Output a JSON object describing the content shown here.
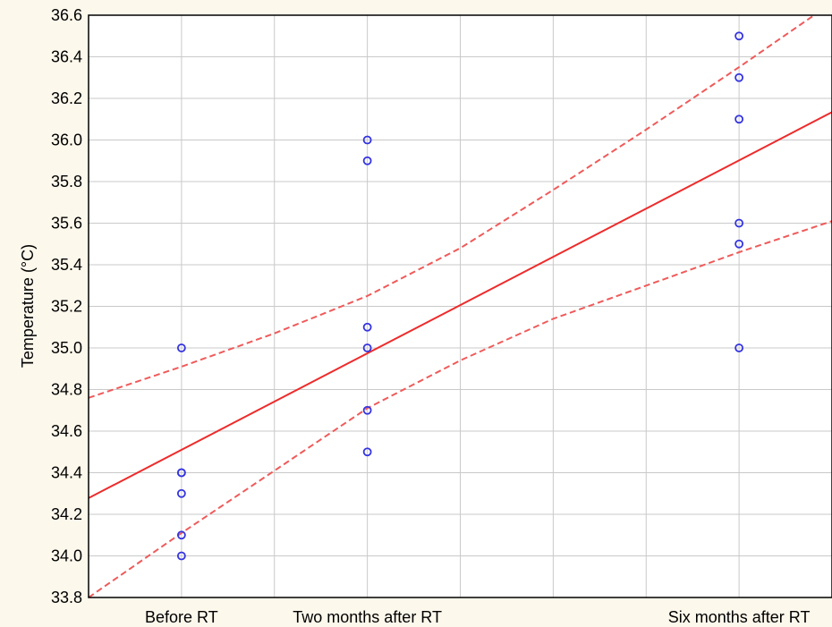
{
  "chart_data": {
    "type": "scatter",
    "title": "",
    "xlabel": "",
    "ylabel": "Temperature (°C)",
    "categories": [
      "Before RT",
      "Two months after RT",
      "Six months after RT"
    ],
    "category_x": [
      0,
      2,
      6
    ],
    "xlim": [
      -1,
      7
    ],
    "ylim": [
      33.8,
      36.6
    ],
    "yticks": [
      33.8,
      34.0,
      34.2,
      34.4,
      34.6,
      34.8,
      35.0,
      35.2,
      35.4,
      35.6,
      35.8,
      36.0,
      36.2,
      36.4,
      36.6
    ],
    "grid": true,
    "points": [
      {
        "x": 0,
        "y": 35.0
      },
      {
        "x": 0,
        "y": 34.4
      },
      {
        "x": 0,
        "y": 34.4
      },
      {
        "x": 0,
        "y": 34.3
      },
      {
        "x": 0,
        "y": 34.1
      },
      {
        "x": 0,
        "y": 34.0
      },
      {
        "x": 2,
        "y": 36.0
      },
      {
        "x": 2,
        "y": 35.9
      },
      {
        "x": 2,
        "y": 35.1
      },
      {
        "x": 2,
        "y": 35.0
      },
      {
        "x": 2,
        "y": 34.7
      },
      {
        "x": 2,
        "y": 34.5
      },
      {
        "x": 6,
        "y": 36.5
      },
      {
        "x": 6,
        "y": 36.3
      },
      {
        "x": 6,
        "y": 36.1
      },
      {
        "x": 6,
        "y": 35.6
      },
      {
        "x": 6,
        "y": 35.5
      },
      {
        "x": 6,
        "y": 35.0
      }
    ],
    "regression_line": {
      "intercept": 34.51,
      "slope": 0.232
    },
    "confidence_band": {
      "x": [
        -1,
        0,
        1,
        2,
        3,
        4,
        5,
        6,
        7
      ],
      "upper": [
        34.76,
        34.91,
        35.07,
        35.25,
        35.48,
        35.76,
        36.05,
        36.35,
        36.66
      ],
      "lower": [
        33.8,
        34.11,
        34.41,
        34.71,
        34.94,
        35.14,
        35.3,
        35.46,
        35.61
      ]
    },
    "colors": {
      "points": "#3434e0",
      "regression": "#ee2b2b",
      "confidence": "#f05a5a",
      "grid": "#c9c9c9",
      "plot_background": "#ffffff",
      "page_background": "#fdf8ec"
    }
  }
}
